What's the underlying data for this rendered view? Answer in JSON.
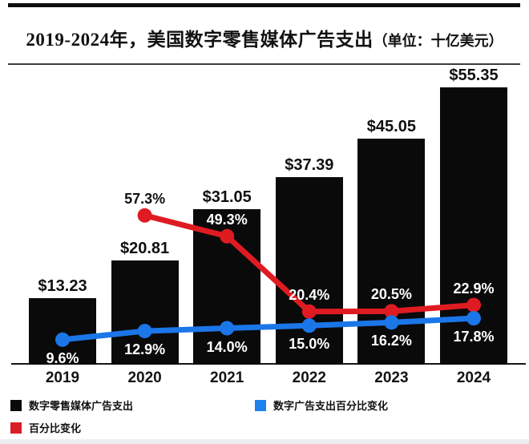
{
  "header": {
    "title_main": "2019-2024年，美国数字零售媒体广告支出",
    "title_suffix": "（单位：十亿美元）"
  },
  "chart_data": {
    "type": "combo_bar_line",
    "title": "2019-2024年，美国数字零售媒体广告支出（单位：十亿美元）",
    "unit": "十亿美元",
    "categories": [
      "2019",
      "2020",
      "2021",
      "2022",
      "2023",
      "2024"
    ],
    "series": [
      {
        "name": "数字零售媒体广告支出",
        "type": "bar",
        "color": "#0a0a0a",
        "values": [
          13.23,
          20.81,
          31.05,
          37.39,
          45.05,
          55.35
        ],
        "labels": [
          "$13.23",
          "$20.81",
          "$31.05",
          "$37.39",
          "$45.05",
          "$55.35"
        ]
      },
      {
        "name": "百分比变化",
        "type": "line",
        "color": "#df1b22",
        "values": [
          null,
          57.3,
          49.3,
          20.4,
          20.5,
          22.9
        ],
        "labels": [
          null,
          "57.3%",
          "49.3%",
          "20.4%",
          "20.5%",
          "22.9%"
        ]
      },
      {
        "name": "数字广告支出百分比变化",
        "type": "line",
        "color": "#1b76e8",
        "values": [
          9.6,
          12.9,
          14.0,
          15.0,
          16.2,
          17.8
        ],
        "labels": [
          "9.6%",
          "12.9%",
          "14.0%",
          "15.0%",
          "16.2%",
          "17.8%"
        ]
      }
    ],
    "bar_axis_range": [
      0,
      59.2
    ],
    "pct_axis_range": [
      0,
      140
    ],
    "grid": false,
    "legend_position": "bottom"
  },
  "legend": {
    "items": [
      {
        "label": "数字零售媒体广告支出",
        "color": "#0a0a0a"
      },
      {
        "label": "数字广告支出百分比变化",
        "color": "#1e80ea"
      },
      {
        "label": "百分比变化",
        "color": "#d91e26"
      }
    ]
  }
}
